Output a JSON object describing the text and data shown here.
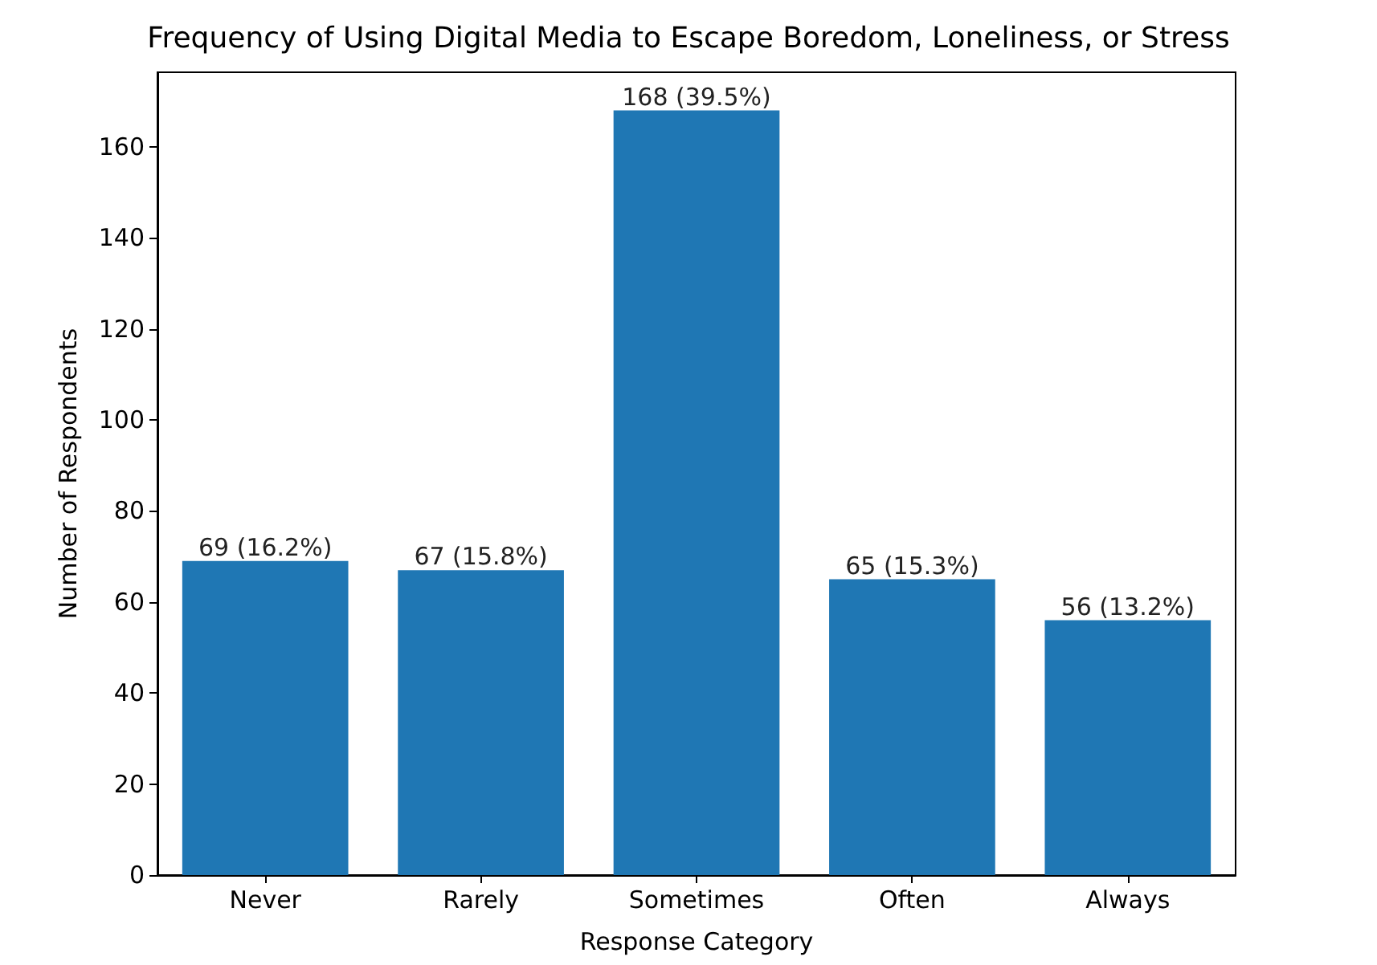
{
  "chart_data": {
    "type": "bar",
    "title": "Frequency of Using Digital Media to Escape Boredom, Loneliness, or Stress",
    "xlabel": "Response Category",
    "ylabel": "Number of Respondents",
    "categories": [
      "Never",
      "Rarely",
      "Sometimes",
      "Often",
      "Always"
    ],
    "values": [
      69,
      67,
      168,
      65,
      56
    ],
    "value_labels": [
      "69 (16.2%)",
      "67 (15.8%)",
      "168 (39.5%)",
      "65 (15.3%)",
      "56 (13.2%)"
    ],
    "color": "#1f77b4",
    "ylim": [
      0,
      176.4
    ],
    "yticks": [
      0,
      20,
      40,
      60,
      80,
      100,
      120,
      140,
      160
    ],
    "grid": false
  }
}
